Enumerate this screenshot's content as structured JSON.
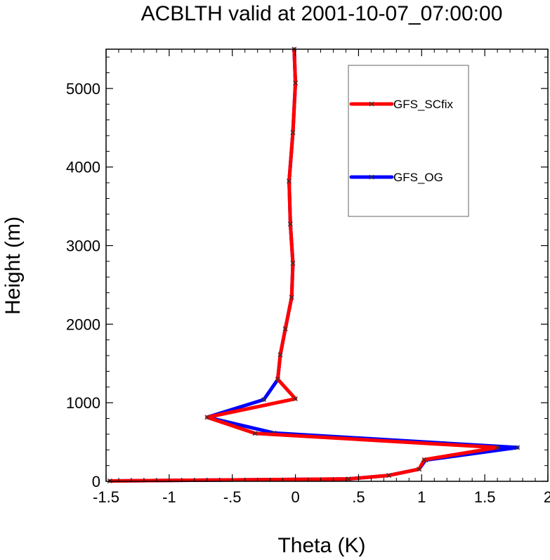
{
  "chart_data": {
    "type": "line",
    "title": "ACBLTH valid at 2001-10-07_07:00:00",
    "xlabel": "Theta (K)",
    "ylabel": "Height (m)",
    "xlim": [
      -1.5,
      2.0
    ],
    "ylim": [
      0,
      5500
    ],
    "x_ticks": [
      {
        "value": -1.5,
        "label": "-1.5"
      },
      {
        "value": -1.0,
        "label": "-1"
      },
      {
        "value": -0.5,
        "label": "-.5"
      },
      {
        "value": 0.0,
        "label": "0"
      },
      {
        "value": 0.5,
        "label": ".5"
      },
      {
        "value": 1.0,
        "label": "1"
      },
      {
        "value": 1.5,
        "label": "1.5"
      },
      {
        "value": 2.0,
        "label": "2"
      }
    ],
    "y_ticks": [
      {
        "value": 0,
        "label": "0"
      },
      {
        "value": 1000,
        "label": "1000"
      },
      {
        "value": 2000,
        "label": "2000"
      },
      {
        "value": 3000,
        "label": "3000"
      },
      {
        "value": 4000,
        "label": "4000"
      },
      {
        "value": 5000,
        "label": "5000"
      }
    ],
    "grid": false,
    "legend_position": "top-right",
    "marker": "x",
    "series": [
      {
        "name": "GFS_OG",
        "color": "#0000ff",
        "points": [
          [
            -1.47,
            5
          ],
          [
            0.42,
            30
          ],
          [
            0.74,
            75
          ],
          [
            0.98,
            155
          ],
          [
            1.03,
            270
          ],
          [
            1.76,
            430
          ],
          [
            -0.17,
            615
          ],
          [
            -0.7,
            815
          ],
          [
            -0.25,
            1040
          ],
          [
            -0.14,
            1295
          ],
          [
            -0.12,
            1610
          ],
          [
            -0.08,
            1940
          ],
          [
            -0.03,
            2340
          ],
          [
            -0.02,
            2775
          ],
          [
            -0.04,
            3275
          ],
          [
            -0.05,
            3820
          ],
          [
            -0.02,
            4440
          ],
          [
            0.0,
            5070
          ],
          [
            -0.01,
            5500
          ]
        ]
      },
      {
        "name": "GFS_SCfix",
        "color": "#ff0000",
        "points": [
          [
            -1.47,
            5
          ],
          [
            0.42,
            30
          ],
          [
            0.74,
            75
          ],
          [
            0.98,
            155
          ],
          [
            1.02,
            275
          ],
          [
            1.6,
            430
          ],
          [
            -0.32,
            610
          ],
          [
            -0.7,
            815
          ],
          [
            0.0,
            1050
          ],
          [
            -0.14,
            1300
          ],
          [
            -0.12,
            1610
          ],
          [
            -0.08,
            1940
          ],
          [
            -0.03,
            2340
          ],
          [
            -0.02,
            2775
          ],
          [
            -0.04,
            3275
          ],
          [
            -0.05,
            3820
          ],
          [
            -0.02,
            4440
          ],
          [
            0.0,
            5070
          ],
          [
            -0.01,
            5500
          ]
        ]
      }
    ]
  },
  "legend": {
    "items": [
      {
        "label": "GFS_SCfix",
        "color": "#ff0000"
      },
      {
        "label": "GFS_OG",
        "color": "#0000ff"
      }
    ]
  },
  "colors": {
    "axis": "#000000",
    "marker": "#333333",
    "legend_border": "#666666"
  }
}
